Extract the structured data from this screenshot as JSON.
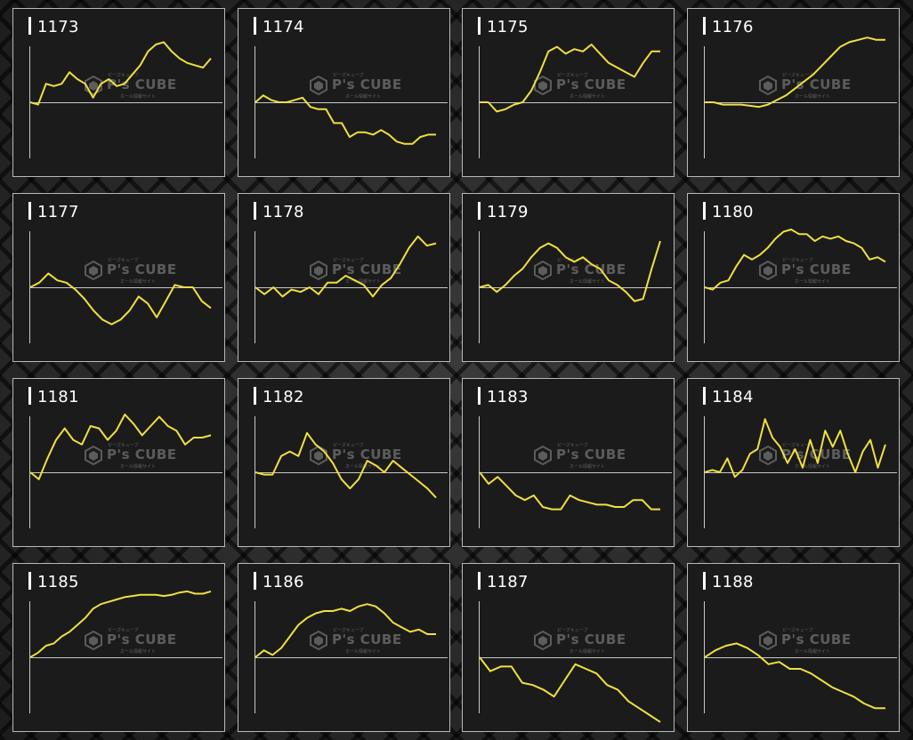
{
  "watermark": {
    "brand": "P's CUBE",
    "tagline_top": "ピーズキューブ",
    "tagline_bottom": "ホール情報サイト"
  },
  "colors": {
    "line": "#f0e040",
    "axis": "#c8c8c8",
    "panel_bg": "#1b1b1b",
    "panel_border": "#b9b9b9",
    "title": "#ffffff"
  },
  "chart_data": [
    {
      "type": "line",
      "title": "1173",
      "y": [
        0,
        -2,
        16,
        14,
        16,
        26,
        20,
        16,
        4,
        16,
        20,
        14,
        16,
        24,
        32,
        44,
        50,
        52,
        44,
        38,
        34,
        32,
        30,
        38
      ]
    },
    {
      "type": "line",
      "title": "1174",
      "y": [
        0,
        6,
        2,
        0,
        0,
        2,
        4,
        -4,
        -6,
        -6,
        -18,
        -18,
        -30,
        -26,
        -26,
        -28,
        -24,
        -28,
        -34,
        -36,
        -36,
        -30,
        -28,
        -28
      ]
    },
    {
      "type": "line",
      "title": "1175",
      "y": [
        0,
        0,
        -8,
        -6,
        -2,
        0,
        10,
        26,
        44,
        48,
        42,
        46,
        44,
        50,
        42,
        34,
        30,
        26,
        22,
        34,
        44,
        44
      ]
    },
    {
      "type": "line",
      "title": "1176",
      "y": [
        0,
        0,
        -2,
        -2,
        -2,
        -3,
        -4,
        -2,
        2,
        6,
        12,
        18,
        24,
        32,
        40,
        48,
        52,
        54,
        56,
        54,
        54
      ]
    },
    {
      "type": "line",
      "title": "1177",
      "y": [
        0,
        4,
        12,
        6,
        4,
        -2,
        -10,
        -20,
        -28,
        -32,
        -28,
        -20,
        -8,
        -14,
        -26,
        -12,
        2,
        0,
        0,
        -12,
        -18
      ]
    },
    {
      "type": "line",
      "title": "1178",
      "y": [
        0,
        -6,
        0,
        -8,
        -2,
        -4,
        0,
        -6,
        4,
        4,
        10,
        6,
        2,
        -8,
        2,
        8,
        20,
        34,
        44,
        36,
        38
      ]
    },
    {
      "type": "line",
      "title": "1179",
      "y": [
        0,
        2,
        -4,
        2,
        10,
        16,
        26,
        34,
        38,
        34,
        26,
        22,
        26,
        20,
        16,
        6,
        2,
        -4,
        -12,
        -10,
        16,
        40
      ]
    },
    {
      "type": "line",
      "title": "1180",
      "y": [
        0,
        -2,
        4,
        6,
        18,
        28,
        24,
        28,
        34,
        42,
        48,
        50,
        46,
        46,
        40,
        44,
        42,
        44,
        40,
        38,
        34,
        24,
        26,
        22
      ]
    },
    {
      "type": "line",
      "title": "1181",
      "y": [
        0,
        -6,
        12,
        28,
        38,
        28,
        24,
        40,
        38,
        28,
        36,
        50,
        42,
        32,
        40,
        48,
        40,
        36,
        24,
        30,
        30,
        32
      ]
    },
    {
      "type": "line",
      "title": "1182",
      "y": [
        0,
        -2,
        -2,
        14,
        18,
        14,
        34,
        24,
        18,
        8,
        -6,
        -14,
        -6,
        10,
        6,
        0,
        10,
        4,
        -2,
        -8,
        -14,
        -22
      ]
    },
    {
      "type": "line",
      "title": "1183",
      "y": [
        0,
        -10,
        -4,
        -12,
        -20,
        -24,
        -20,
        -30,
        -32,
        -32,
        -20,
        -24,
        -26,
        -28,
        -28,
        -30,
        -30,
        -24,
        -24,
        -32,
        -32
      ]
    },
    {
      "type": "line",
      "title": "1184",
      "y": [
        0,
        2,
        0,
        12,
        -4,
        2,
        16,
        20,
        46,
        30,
        22,
        8,
        20,
        4,
        28,
        8,
        36,
        22,
        36,
        16,
        0,
        18,
        28,
        4,
        24
      ]
    },
    {
      "type": "line",
      "title": "1185",
      "y": [
        0,
        4,
        10,
        12,
        18,
        22,
        28,
        34,
        42,
        46,
        48,
        50,
        52,
        53,
        54,
        54,
        54,
        53,
        54,
        56,
        57,
        55,
        55,
        57
      ]
    },
    {
      "type": "line",
      "title": "1186",
      "y": [
        0,
        6,
        2,
        8,
        18,
        28,
        34,
        38,
        40,
        40,
        42,
        40,
        44,
        46,
        44,
        38,
        30,
        26,
        22,
        24,
        20,
        20
      ]
    },
    {
      "type": "line",
      "title": "1187",
      "y": [
        0,
        -12,
        -8,
        -8,
        -22,
        -24,
        -28,
        -34,
        -20,
        -6,
        -10,
        -14,
        -24,
        -28,
        -38,
        -44,
        -50,
        -56
      ]
    },
    {
      "type": "line",
      "title": "1188",
      "y": [
        0,
        6,
        10,
        12,
        8,
        2,
        -6,
        -4,
        -10,
        -10,
        -14,
        -20,
        -26,
        -30,
        -34,
        -40,
        -44,
        -44
      ]
    }
  ]
}
